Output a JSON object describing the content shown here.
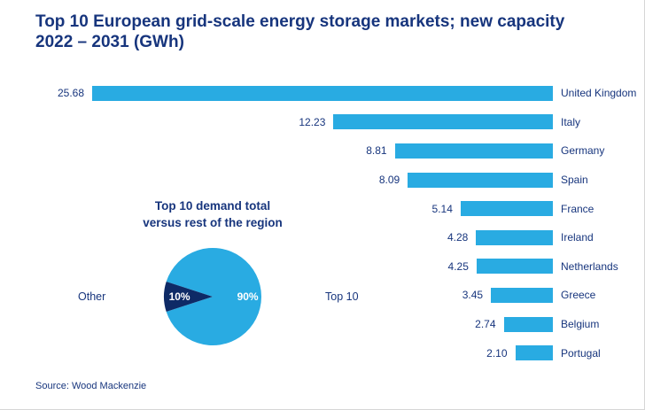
{
  "page": {
    "title_lines": [
      "Top 10 European grid-scale energy storage markets; new capacity",
      "2022 – 2031 (GWh)"
    ],
    "source": "Source: Wood Mackenzie"
  },
  "colors": {
    "bar_blue": "#29abe2",
    "navy_text": "#17357d",
    "pie_other_navy": "#0e2a66"
  },
  "chart_data": [
    {
      "type": "bar",
      "orientation": "horizontal-right-anchored",
      "title": "Top 10 European grid-scale energy storage markets; new capacity 2022 – 2031 (GWh)",
      "unit": "GWh",
      "categories": [
        "United Kingdom",
        "Italy",
        "Germany",
        "Spain",
        "France",
        "Ireland",
        "Netherlands",
        "Greece",
        "Belgium",
        "Portugal"
      ],
      "values": [
        25.68,
        12.23,
        8.81,
        8.09,
        5.14,
        4.28,
        4.25,
        3.45,
        2.74,
        2.1
      ],
      "value_labels": [
        "25.68",
        "12.23",
        "8.81",
        "8.09",
        "5.14",
        "4.28",
        "4.25",
        "3.45",
        "2.74",
        "2.10"
      ],
      "xlim": [
        0,
        25.68
      ],
      "grid": false,
      "legend": false
    },
    {
      "type": "pie",
      "title": "Top 10 demand total versus rest of the region",
      "title_lines": [
        "Top 10 demand total",
        "versus rest of the region"
      ],
      "slices": [
        {
          "label": "Top 10",
          "value": 90,
          "display": "90%",
          "color": "#29abe2"
        },
        {
          "label": "Other",
          "value": 10,
          "display": "10%",
          "color": "#0e2a66"
        }
      ],
      "legend": false
    }
  ]
}
